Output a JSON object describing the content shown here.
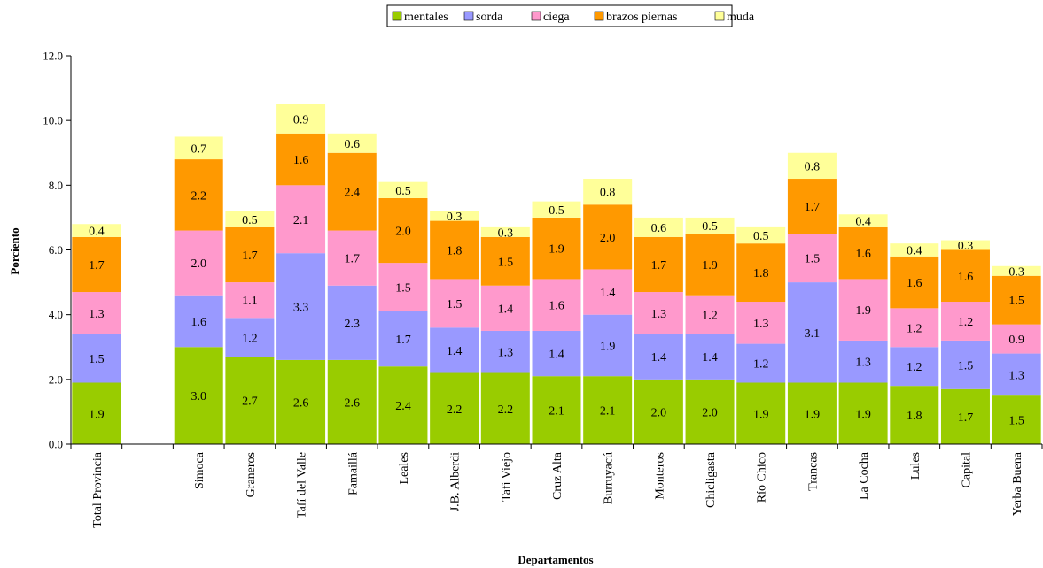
{
  "chart_data": {
    "type": "bar",
    "stacked": true,
    "title": "",
    "xlabel": "Departamentos",
    "ylabel": "Porciento",
    "ylim": [
      0,
      12
    ],
    "yticks": [
      "0.0",
      "2.0",
      "4.0",
      "6.0",
      "8.0",
      "10.0",
      "12.0"
    ],
    "grid": false,
    "legend_position": "top",
    "categories": [
      "Total Provincia",
      "",
      "Simoca",
      "Graneros",
      "Tafí del Valle",
      "Famaillá",
      "Leales",
      "J.B. Alberdi",
      "Tafí Viejo",
      "Cruz Alta",
      "Burruyacú",
      "Monteros",
      "Chicligasta",
      "Río Chico",
      "Trancas",
      "La Cocha",
      "Lules",
      "Capital",
      "Yerba Buena"
    ],
    "series": [
      {
        "name": "mentales",
        "color": "#99cc00",
        "values": [
          1.9,
          null,
          3.0,
          2.7,
          2.6,
          2.6,
          2.4,
          2.2,
          2.2,
          2.1,
          2.1,
          2.0,
          2.0,
          1.9,
          1.9,
          1.9,
          1.8,
          1.7,
          1.5
        ]
      },
      {
        "name": "sorda",
        "color": "#9999ff",
        "values": [
          1.5,
          null,
          1.6,
          1.2,
          3.3,
          2.3,
          1.7,
          1.4,
          1.3,
          1.4,
          1.9,
          1.4,
          1.4,
          1.2,
          3.1,
          1.3,
          1.2,
          1.5,
          1.3
        ]
      },
      {
        "name": "ciega",
        "color": "#ff99cc",
        "values": [
          1.3,
          null,
          2.0,
          1.1,
          2.1,
          1.7,
          1.5,
          1.5,
          1.4,
          1.6,
          1.4,
          1.3,
          1.2,
          1.3,
          1.5,
          1.9,
          1.2,
          1.2,
          0.9
        ]
      },
      {
        "name": "brazos piernas",
        "color": "#ff9900",
        "values": [
          1.7,
          null,
          2.2,
          1.7,
          1.6,
          2.4,
          2.0,
          1.8,
          1.5,
          1.9,
          2.0,
          1.7,
          1.9,
          1.8,
          1.7,
          1.6,
          1.6,
          1.6,
          1.5
        ]
      },
      {
        "name": "muda",
        "color": "#ffff99",
        "values": [
          0.4,
          null,
          0.7,
          0.5,
          0.9,
          0.6,
          0.5,
          0.3,
          0.3,
          0.5,
          0.8,
          0.6,
          0.5,
          0.5,
          0.8,
          0.4,
          0.4,
          0.3,
          0.3
        ]
      }
    ]
  }
}
